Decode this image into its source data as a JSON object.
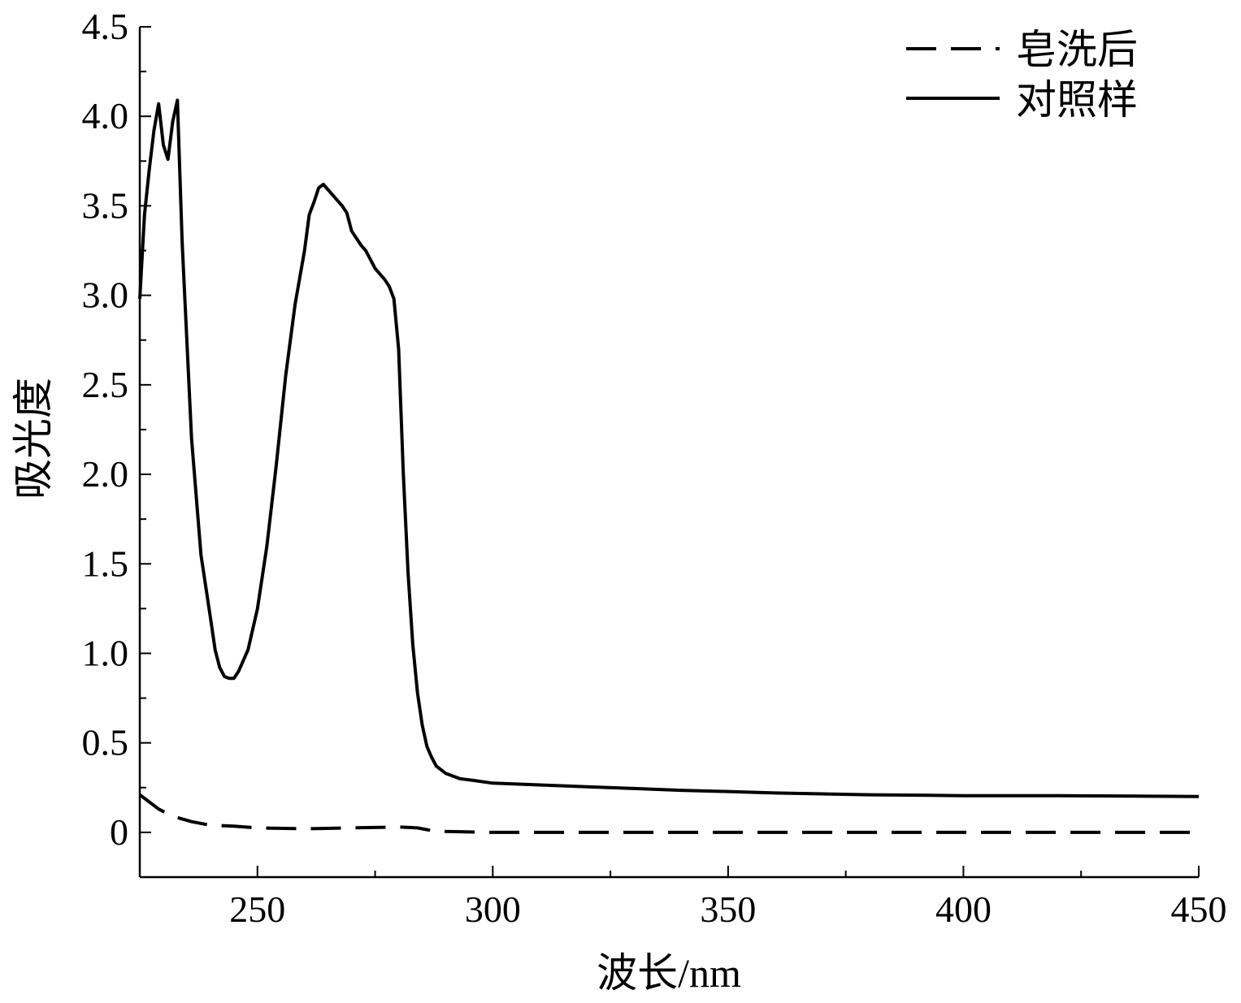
{
  "chart_data": {
    "type": "line",
    "xlabel": "波长/nm",
    "ylabel": "吸光度",
    "xlim": [
      225,
      450
    ],
    "ylim": [
      -0.25,
      4.5
    ],
    "x_ticks": [
      250,
      300,
      350,
      400,
      450
    ],
    "y_ticks": [
      0,
      0.5,
      1.0,
      1.5,
      2.0,
      2.5,
      3.0,
      3.5,
      4.0,
      4.5
    ],
    "y_tick_labels": [
      "0",
      "0.5",
      "1.0",
      "1.5",
      "2.0",
      "2.5",
      "3.0",
      "3.5",
      "4.0",
      "4.5"
    ],
    "legend_position": "top-right",
    "series": [
      {
        "name": "皂洗后",
        "style": "dashed",
        "color": "#000000",
        "points": [
          [
            225,
            0.21
          ],
          [
            227,
            0.17
          ],
          [
            229,
            0.13
          ],
          [
            232,
            0.09
          ],
          [
            236,
            0.06
          ],
          [
            240,
            0.04
          ],
          [
            245,
            0.035
          ],
          [
            250,
            0.025
          ],
          [
            260,
            0.02
          ],
          [
            270,
            0.025
          ],
          [
            280,
            0.03
          ],
          [
            284,
            0.025
          ],
          [
            287,
            0.01
          ],
          [
            290,
            0.005
          ],
          [
            300,
            0.0
          ],
          [
            320,
            0.0
          ],
          [
            350,
            0.0
          ],
          [
            380,
            0.0
          ],
          [
            410,
            0.0
          ],
          [
            450,
            0.0
          ]
        ]
      },
      {
        "name": "对照样",
        "style": "solid",
        "color": "#000000",
        "points": [
          [
            225,
            2.98
          ],
          [
            226,
            3.45
          ],
          [
            227,
            3.7
          ],
          [
            228,
            3.92
          ],
          [
            229,
            4.07
          ],
          [
            230,
            3.84
          ],
          [
            231,
            3.76
          ],
          [
            232,
            3.97
          ],
          [
            233,
            4.09
          ],
          [
            234,
            3.3
          ],
          [
            236,
            2.2
          ],
          [
            238,
            1.55
          ],
          [
            240,
            1.2
          ],
          [
            241,
            1.02
          ],
          [
            242,
            0.92
          ],
          [
            243,
            0.87
          ],
          [
            244,
            0.86
          ],
          [
            245,
            0.86
          ],
          [
            246,
            0.9
          ],
          [
            248,
            1.02
          ],
          [
            250,
            1.25
          ],
          [
            252,
            1.6
          ],
          [
            254,
            2.05
          ],
          [
            256,
            2.55
          ],
          [
            258,
            2.95
          ],
          [
            260,
            3.25
          ],
          [
            261,
            3.45
          ],
          [
            262,
            3.52
          ],
          [
            263,
            3.6
          ],
          [
            264,
            3.62
          ],
          [
            266,
            3.56
          ],
          [
            268,
            3.5
          ],
          [
            269,
            3.46
          ],
          [
            270,
            3.36
          ],
          [
            271,
            3.32
          ],
          [
            272,
            3.28
          ],
          [
            273,
            3.25
          ],
          [
            274,
            3.2
          ],
          [
            275,
            3.15
          ],
          [
            276,
            3.12
          ],
          [
            277,
            3.09
          ],
          [
            278,
            3.05
          ],
          [
            279,
            2.98
          ],
          [
            280,
            2.7
          ],
          [
            281,
            2.0
          ],
          [
            282,
            1.45
          ],
          [
            283,
            1.05
          ],
          [
            284,
            0.78
          ],
          [
            285,
            0.6
          ],
          [
            286,
            0.48
          ],
          [
            287,
            0.42
          ],
          [
            288,
            0.37
          ],
          [
            290,
            0.33
          ],
          [
            293,
            0.3
          ],
          [
            296,
            0.29
          ],
          [
            300,
            0.275
          ],
          [
            310,
            0.265
          ],
          [
            320,
            0.255
          ],
          [
            330,
            0.245
          ],
          [
            340,
            0.235
          ],
          [
            350,
            0.228
          ],
          [
            360,
            0.22
          ],
          [
            370,
            0.215
          ],
          [
            380,
            0.21
          ],
          [
            400,
            0.205
          ],
          [
            420,
            0.205
          ],
          [
            450,
            0.2
          ]
        ]
      }
    ]
  }
}
